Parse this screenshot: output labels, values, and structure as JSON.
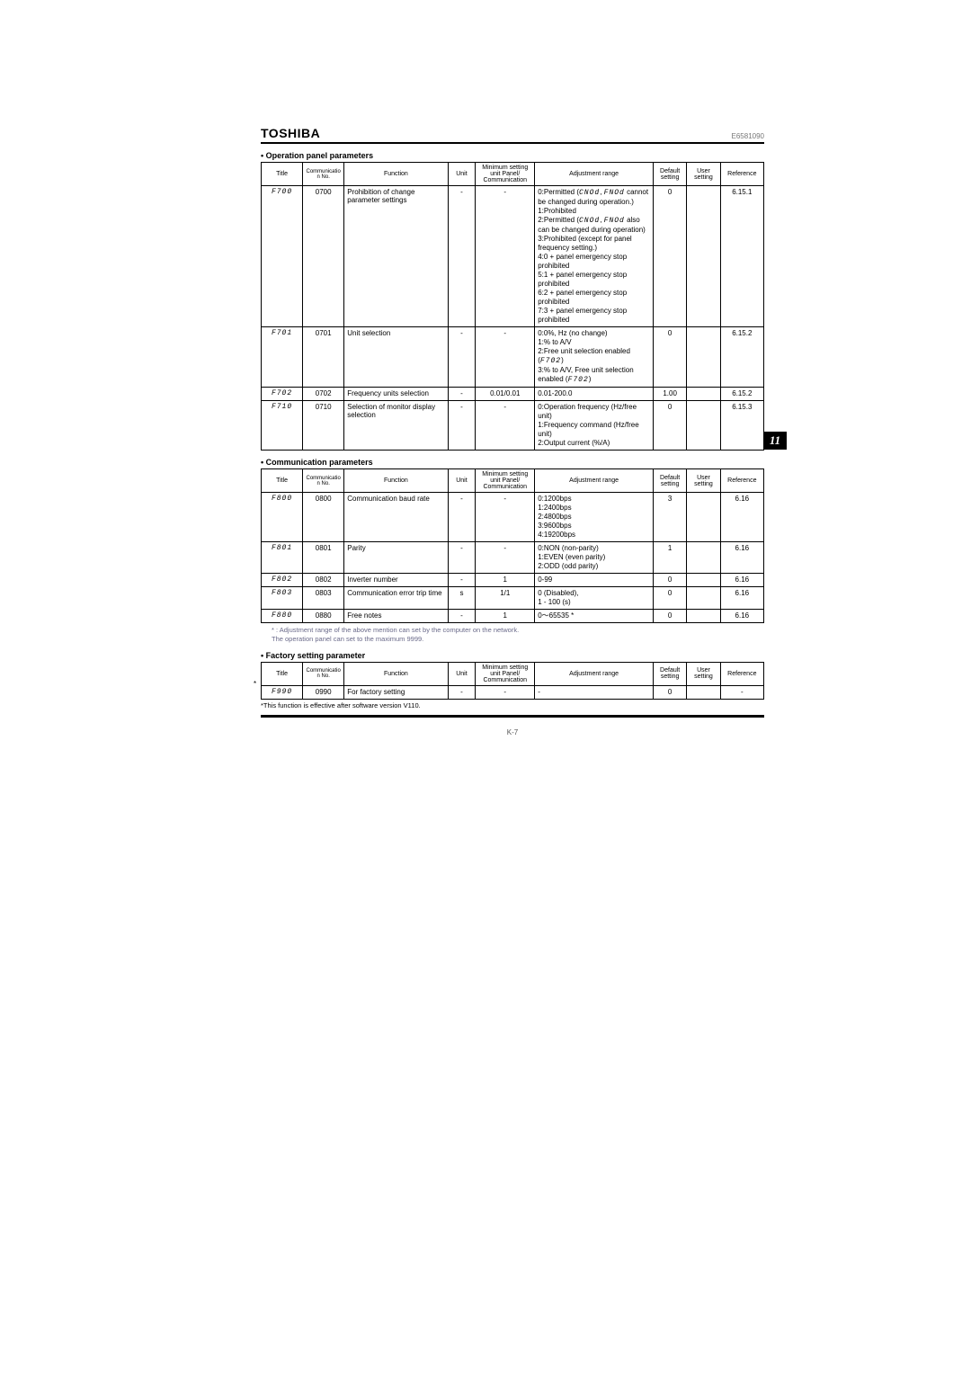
{
  "brand": "TOSHIBA",
  "doc_number": "E6581090",
  "page_tab": "11",
  "page_num": "K-7",
  "headers": {
    "title": "Title",
    "comm_no": "Communication No.",
    "function": "Function",
    "unit": "Unit",
    "min_setting": "Minimum setting unit Panel/ Communication",
    "adj_range": "Adjustment range",
    "default": "Default setting",
    "user": "User setting",
    "reference": "Reference"
  },
  "section_operation_title": "• Operation panel parameters",
  "operation_rows": [
    {
      "title": "F700",
      "comm": "0700",
      "func": "Prohibition of change parameter settings",
      "unit": "-",
      "min": "-",
      "adj": "0:Permitted (|CNOd|, |FNOd| cannot be changed during operation.)<br>1:Prohibited<br>2:Permitted (|CNOd|, |FNOd| also can be changed during operation)<br>3:Prohibited (except for panel frequency setting.)<br>4:0 + panel emergency stop prohibited<br>5:1 + panel emergency stop prohibited<br>6:2 + panel emergency stop prohibited<br>7:3 + panel emergency stop prohibited",
      "def": "0",
      "ref": "6.15.1"
    },
    {
      "title": "F701",
      "comm": "0701",
      "func": "Unit selection",
      "unit": "-",
      "min": "-",
      "adj": "0:0%, Hz (no change)<br>1:% to A/V<br>2:Free unit selection enabled (|F702|)<br>3:% to A/V, Free unit selection enabled (|F702|)",
      "def": "0",
      "ref": "6.15.2"
    },
    {
      "title": "F702",
      "comm": "0702",
      "func": "Frequency units selection",
      "unit": "-",
      "min": "0.01/0.01",
      "adj": "0.01-200.0",
      "def": "1.00",
      "ref": "6.15.2"
    },
    {
      "title": "F710",
      "comm": "0710",
      "func": "Selection of monitor display selection",
      "unit": "-",
      "min": "-",
      "adj": "0:Operation frequency (Hz/free unit)<br>1:Frequency command (Hz/free unit)<br>2:Output current (%/A)",
      "def": "0",
      "ref": "6.15.3"
    }
  ],
  "section_communication_title": "• Communication parameters",
  "communication_rows": [
    {
      "title": "F800",
      "comm": "0800",
      "func": "Communication baud rate",
      "unit": "-",
      "min": "-",
      "adj": "0:1200bps<br>1:2400bps<br>2:4800bps<br>3:9600bps<br>4:19200bps",
      "def": "3",
      "ref": "6.16"
    },
    {
      "title": "F801",
      "comm": "0801",
      "func": "Parity",
      "unit": "-",
      "min": "-",
      "adj": "0:NON (non-parity)<br>1:EVEN (even parity)<br>2:ODD (odd parity)",
      "def": "1",
      "ref": "6.16"
    },
    {
      "title": "F802",
      "comm": "0802",
      "func": "Inverter number",
      "unit": "-",
      "min": "1",
      "adj": "0-99",
      "def": "0",
      "ref": "6.16"
    },
    {
      "title": "F803",
      "comm": "0803",
      "func": "Communication error trip time",
      "unit": "s",
      "min": "1/1",
      "adj": "0 (Disabled),<br>1 - 100 (s)",
      "def": "0",
      "ref": "6.16"
    },
    {
      "title": "F880",
      "comm": "0880",
      "func": "Free notes",
      "unit": "-",
      "min": "1",
      "adj": "0～65535 *",
      "def": "0",
      "ref": "6.16"
    }
  ],
  "comm_note1": "* : Adjustment range of the above mention can set by the computer on the network.",
  "comm_note2": "The operation panel can set to the maximum 9999.",
  "section_factory_title": "• Factory setting parameter",
  "factory_rows": [
    {
      "title": "F990",
      "comm": "0990",
      "func": "For factory setting",
      "unit": "-",
      "min": "-",
      "adj": "-",
      "def": "0",
      "ref": "-"
    }
  ],
  "factory_note": "*This function is effective after software version V110.",
  "colwidths": {
    "title": "42px",
    "comm": "42px",
    "func": "105px",
    "unit": "28px",
    "min": "60px",
    "adj": "120px",
    "def": "34px",
    "user": "34px",
    "ref": "44px"
  },
  "colors": {
    "text": "#000000",
    "note": "#6a6a8a",
    "border": "#000000"
  }
}
